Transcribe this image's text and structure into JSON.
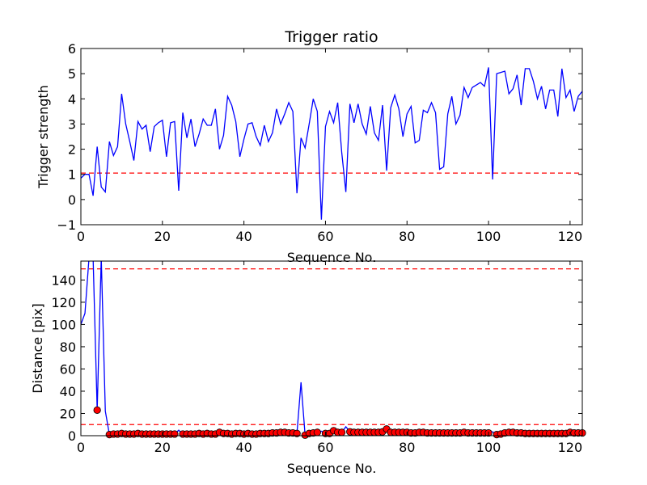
{
  "chart_data": [
    {
      "type": "line",
      "title": "Trigger ratio",
      "xlabel": "Sequence No.",
      "ylabel": "Trigger strength",
      "xlim": [
        0,
        123
      ],
      "ylim": [
        -1,
        6
      ],
      "xticks": [
        0,
        20,
        40,
        60,
        80,
        100,
        120
      ],
      "yticks": [
        -1,
        0,
        1,
        2,
        3,
        4,
        5,
        6
      ],
      "line_color": "#0000ff",
      "threshold_color": "#ff0000",
      "thresholds": [
        1.05
      ],
      "series": [
        {
          "x": [
            0,
            1,
            2,
            3,
            4,
            5,
            6,
            7,
            8,
            9,
            10,
            11,
            12,
            13,
            14,
            15,
            16,
            17,
            18,
            19,
            20,
            21,
            22,
            23,
            24,
            25,
            26,
            27,
            28,
            29,
            30,
            31,
            32,
            33,
            34,
            35,
            36,
            37,
            38,
            39,
            40,
            41,
            42,
            43,
            44,
            45,
            46,
            47,
            48,
            49,
            50,
            51,
            52,
            53,
            54,
            55,
            56,
            57,
            58,
            59,
            60,
            61,
            62,
            63,
            64,
            65,
            66,
            67,
            68,
            69,
            70,
            71,
            72,
            73,
            74,
            75,
            76,
            77,
            78,
            79,
            80,
            81,
            82,
            83,
            84,
            85,
            86,
            87,
            88,
            89,
            90,
            91,
            92,
            93,
            94,
            95,
            96,
            97,
            98,
            99,
            100,
            101,
            102,
            103,
            104,
            105,
            106,
            107,
            108,
            109,
            110,
            111,
            112,
            113,
            114,
            115,
            116,
            117,
            118,
            119,
            120,
            121,
            122,
            123
          ],
          "y": [
            0.85,
            1.0,
            1.0,
            0.15,
            2.1,
            0.5,
            0.3,
            2.3,
            1.75,
            2.1,
            4.2,
            3.0,
            2.3,
            1.55,
            3.1,
            2.8,
            2.95,
            1.9,
            2.9,
            3.05,
            3.15,
            1.7,
            3.05,
            3.1,
            0.35,
            3.45,
            2.45,
            3.2,
            2.1,
            2.6,
            3.2,
            2.95,
            2.95,
            3.6,
            2.0,
            2.55,
            4.1,
            3.75,
            3.1,
            1.7,
            2.4,
            3.0,
            3.05,
            2.5,
            2.15,
            2.95,
            2.3,
            2.65,
            3.6,
            3.0,
            3.4,
            3.85,
            3.5,
            0.25,
            2.45,
            2.05,
            3.0,
            4.0,
            3.5,
            -0.8,
            2.9,
            3.5,
            3.05,
            3.85,
            1.85,
            0.3,
            3.8,
            3.05,
            3.8,
            3.0,
            2.6,
            3.7,
            2.65,
            2.35,
            3.75,
            1.15,
            3.65,
            4.15,
            3.6,
            2.5,
            3.4,
            3.7,
            2.25,
            2.35,
            3.55,
            3.45,
            3.85,
            3.45,
            1.2,
            1.3,
            3.4,
            4.1,
            3.0,
            3.35,
            4.45,
            4.05,
            4.45,
            4.55,
            4.65,
            4.5,
            5.25,
            0.8,
            5.0,
            5.05,
            5.1,
            4.2,
            4.4,
            4.95,
            3.75,
            5.2,
            5.2,
            4.7,
            4.0,
            4.5,
            3.6,
            4.35,
            4.35,
            3.3,
            5.2,
            4.05,
            4.35,
            3.5,
            4.1,
            4.3
          ]
        }
      ]
    },
    {
      "type": "line",
      "title": "",
      "xlabel": "Sequence No.",
      "ylabel": "Distance [pix]",
      "xlim": [
        0,
        123
      ],
      "ylim": [
        0,
        157
      ],
      "xticks": [
        0,
        20,
        40,
        60,
        80,
        100,
        120
      ],
      "yticks": [
        0,
        20,
        40,
        60,
        80,
        100,
        120,
        140
      ],
      "line_color": "#0000ff",
      "marker_color": "#ff0000",
      "threshold_color": "#ff0000",
      "thresholds": [
        10,
        150
      ],
      "series": [
        {
          "x": [
            0,
            1,
            2,
            3,
            4,
            5,
            6,
            7,
            8,
            9,
            10,
            11,
            12,
            13,
            14,
            15,
            16,
            17,
            18,
            19,
            20,
            21,
            22,
            23,
            24,
            25,
            26,
            27,
            28,
            29,
            30,
            31,
            32,
            33,
            34,
            35,
            36,
            37,
            38,
            39,
            40,
            41,
            42,
            43,
            44,
            45,
            46,
            47,
            48,
            49,
            50,
            51,
            52,
            53,
            54,
            55,
            56,
            57,
            58,
            59,
            60,
            61,
            62,
            63,
            64,
            65,
            66,
            67,
            68,
            69,
            70,
            71,
            72,
            73,
            74,
            75,
            76,
            77,
            78,
            79,
            80,
            81,
            82,
            83,
            84,
            85,
            86,
            87,
            88,
            89,
            90,
            91,
            92,
            93,
            94,
            95,
            96,
            97,
            98,
            99,
            100,
            101,
            102,
            103,
            104,
            105,
            106,
            107,
            108,
            109,
            110,
            111,
            112,
            113,
            114,
            115,
            116,
            117,
            118,
            119,
            120,
            121,
            122,
            123
          ],
          "y": [
            100,
            110,
            160,
            160,
            23,
            160,
            22,
            1,
            1.5,
            1.5,
            2,
            1.5,
            1.5,
            1.5,
            2,
            1.5,
            1.5,
            1.5,
            1.5,
            1.5,
            1.5,
            1.5,
            1.5,
            1.5,
            5,
            1.5,
            1.5,
            1.5,
            1.5,
            2,
            1.5,
            2,
            1.5,
            1.5,
            3,
            2,
            2,
            1.5,
            2,
            2,
            1.5,
            2,
            1.5,
            1.5,
            2,
            2,
            2,
            2.5,
            2.5,
            3,
            3,
            2.5,
            2.5,
            2,
            48,
            0.5,
            2,
            2.5,
            3,
            4,
            2,
            2,
            4.5,
            3,
            3,
            8,
            3.5,
            3,
            3,
            3,
            3,
            3,
            3,
            3,
            3.5,
            6,
            3,
            3,
            3,
            3,
            3,
            2.5,
            2.5,
            3,
            3,
            2.5,
            2.5,
            2.5,
            2.5,
            2.5,
            2.5,
            2.5,
            2.5,
            2.5,
            3,
            2.5,
            2.5,
            2.5,
            2.5,
            2.5,
            2.5,
            3.5,
            1,
            1.5,
            2.5,
            3,
            3,
            2.5,
            2.5,
            2,
            2,
            2,
            2,
            2,
            2,
            2,
            2,
            2,
            2,
            2,
            3,
            2.5,
            2.5,
            2.5
          ],
          "markers": [
            {
              "x": 4,
              "y": 23
            },
            {
              "x": 7,
              "y": 1
            },
            {
              "x": 8,
              "y": 1.5
            },
            {
              "x": 9,
              "y": 1.5
            },
            {
              "x": 10,
              "y": 2
            },
            {
              "x": 11,
              "y": 1.5
            },
            {
              "x": 12,
              "y": 1.5
            },
            {
              "x": 13,
              "y": 1.5
            },
            {
              "x": 14,
              "y": 2
            },
            {
              "x": 15,
              "y": 1.5
            },
            {
              "x": 16,
              "y": 1.5
            },
            {
              "x": 17,
              "y": 1.5
            },
            {
              "x": 18,
              "y": 1.5
            },
            {
              "x": 19,
              "y": 1.5
            },
            {
              "x": 20,
              "y": 1.5
            },
            {
              "x": 21,
              "y": 1.5
            },
            {
              "x": 22,
              "y": 1.5
            },
            {
              "x": 23,
              "y": 1.5
            },
            {
              "x": 25,
              "y": 1.5
            },
            {
              "x": 26,
              "y": 1.5
            },
            {
              "x": 27,
              "y": 1.5
            },
            {
              "x": 28,
              "y": 1.5
            },
            {
              "x": 29,
              "y": 2
            },
            {
              "x": 30,
              "y": 1.5
            },
            {
              "x": 31,
              "y": 2
            },
            {
              "x": 32,
              "y": 1.5
            },
            {
              "x": 33,
              "y": 1.5
            },
            {
              "x": 34,
              "y": 3
            },
            {
              "x": 35,
              "y": 2
            },
            {
              "x": 36,
              "y": 2
            },
            {
              "x": 37,
              "y": 1.5
            },
            {
              "x": 38,
              "y": 2
            },
            {
              "x": 39,
              "y": 2
            },
            {
              "x": 40,
              "y": 1.5
            },
            {
              "x": 41,
              "y": 2
            },
            {
              "x": 42,
              "y": 1.5
            },
            {
              "x": 43,
              "y": 1.5
            },
            {
              "x": 44,
              "y": 2
            },
            {
              "x": 45,
              "y": 2
            },
            {
              "x": 46,
              "y": 2
            },
            {
              "x": 47,
              "y": 2.5
            },
            {
              "x": 48,
              "y": 2.5
            },
            {
              "x": 49,
              "y": 3
            },
            {
              "x": 50,
              "y": 3
            },
            {
              "x": 51,
              "y": 2.5
            },
            {
              "x": 52,
              "y": 2.5
            },
            {
              "x": 53,
              "y": 2
            },
            {
              "x": 55,
              "y": 0.5
            },
            {
              "x": 56,
              "y": 2
            },
            {
              "x": 57,
              "y": 2.5
            },
            {
              "x": 58,
              "y": 3
            },
            {
              "x": 60,
              "y": 2
            },
            {
              "x": 61,
              "y": 2
            },
            {
              "x": 62,
              "y": 4.5
            },
            {
              "x": 63,
              "y": 3
            },
            {
              "x": 64,
              "y": 3
            },
            {
              "x": 66,
              "y": 3.5
            },
            {
              "x": 67,
              "y": 3
            },
            {
              "x": 68,
              "y": 3
            },
            {
              "x": 69,
              "y": 3
            },
            {
              "x": 70,
              "y": 3
            },
            {
              "x": 71,
              "y": 3
            },
            {
              "x": 72,
              "y": 3
            },
            {
              "x": 73,
              "y": 3
            },
            {
              "x": 74,
              "y": 3.5
            },
            {
              "x": 75,
              "y": 6
            },
            {
              "x": 76,
              "y": 3
            },
            {
              "x": 77,
              "y": 3
            },
            {
              "x": 78,
              "y": 3
            },
            {
              "x": 79,
              "y": 3
            },
            {
              "x": 80,
              "y": 3
            },
            {
              "x": 81,
              "y": 2.5
            },
            {
              "x": 82,
              "y": 2.5
            },
            {
              "x": 83,
              "y": 3
            },
            {
              "x": 84,
              "y": 3
            },
            {
              "x": 85,
              "y": 2.5
            },
            {
              "x": 86,
              "y": 2.5
            },
            {
              "x": 87,
              "y": 2.5
            },
            {
              "x": 88,
              "y": 2.5
            },
            {
              "x": 89,
              "y": 2.5
            },
            {
              "x": 90,
              "y": 2.5
            },
            {
              "x": 91,
              "y": 2.5
            },
            {
              "x": 92,
              "y": 2.5
            },
            {
              "x": 93,
              "y": 2.5
            },
            {
              "x": 94,
              "y": 3
            },
            {
              "x": 95,
              "y": 2.5
            },
            {
              "x": 96,
              "y": 2.5
            },
            {
              "x": 97,
              "y": 2.5
            },
            {
              "x": 98,
              "y": 2.5
            },
            {
              "x": 99,
              "y": 2.5
            },
            {
              "x": 100,
              "y": 2.5
            },
            {
              "x": 102,
              "y": 1
            },
            {
              "x": 103,
              "y": 1.5
            },
            {
              "x": 104,
              "y": 2.5
            },
            {
              "x": 105,
              "y": 3
            },
            {
              "x": 106,
              "y": 3
            },
            {
              "x": 107,
              "y": 2.5
            },
            {
              "x": 108,
              "y": 2.5
            },
            {
              "x": 109,
              "y": 2
            },
            {
              "x": 110,
              "y": 2
            },
            {
              "x": 111,
              "y": 2
            },
            {
              "x": 112,
              "y": 2
            },
            {
              "x": 113,
              "y": 2
            },
            {
              "x": 114,
              "y": 2
            },
            {
              "x": 115,
              "y": 2
            },
            {
              "x": 116,
              "y": 2
            },
            {
              "x": 117,
              "y": 2
            },
            {
              "x": 118,
              "y": 2
            },
            {
              "x": 119,
              "y": 2
            },
            {
              "x": 120,
              "y": 3
            },
            {
              "x": 121,
              "y": 2.5
            },
            {
              "x": 122,
              "y": 2.5
            },
            {
              "x": 123,
              "y": 2.5
            }
          ]
        }
      ]
    }
  ]
}
